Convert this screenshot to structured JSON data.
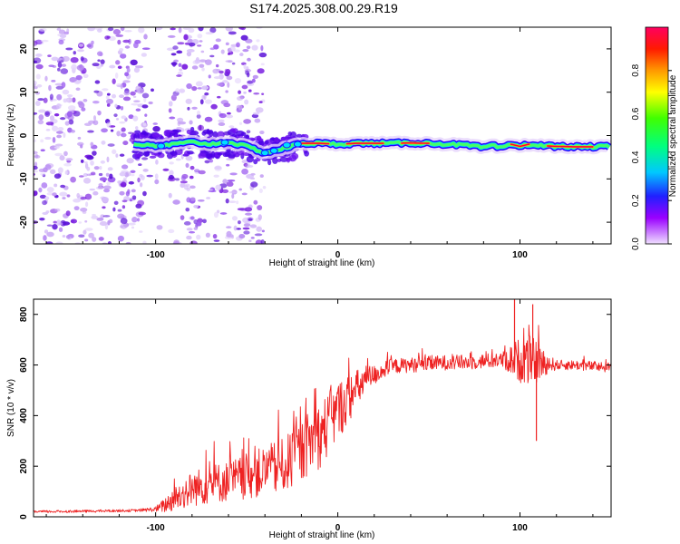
{
  "title": "S174.2025.308.00.29.R19",
  "colors": {
    "snr_line": "#ee2222",
    "ridge_outer": "#2b00ff",
    "ridge_mid": "#00ddff",
    "ridge_core": "#ff0033",
    "scatter": "#7b1ce8"
  },
  "chart_data": [
    {
      "type": "heatmap",
      "name": "spectrogram",
      "xlabel": "Height of straight line (km)",
      "ylabel": "Frequency (Hz)",
      "xlim": [
        -167,
        150
      ],
      "ylim": [
        -25,
        25
      ],
      "xticks": [
        -100,
        0,
        100
      ],
      "yticks": [
        -20,
        -10,
        0,
        10,
        20
      ],
      "ridge_x": [
        -110,
        -100,
        -90,
        -80,
        -70,
        -60,
        -50,
        -40,
        -30,
        -20,
        -10,
        0,
        10,
        20,
        30,
        40,
        50,
        60,
        70,
        80,
        85,
        90,
        95,
        100,
        105,
        110,
        120,
        130,
        140,
        148
      ],
      "ridge_y": [
        -2,
        -2.5,
        -2,
        -1.5,
        -2,
        -1.5,
        -2.5,
        -4,
        -3,
        -1.8,
        -1.8,
        -2,
        -1.8,
        -1.8,
        -1.8,
        -1.7,
        -1.8,
        -2,
        -2.2,
        -2.8,
        -2.3,
        -3,
        -2,
        -2.5,
        -2,
        -2.3,
        -2.5,
        -2.6,
        -2.6,
        -2.5
      ],
      "scatter_span": [
        -167,
        -40
      ],
      "colorbar": {
        "label": "Normalized spectral amplitude",
        "range": [
          0.0,
          1.0
        ],
        "ticks": [
          0.0,
          0.2,
          0.4,
          0.6,
          0.8
        ]
      }
    },
    {
      "type": "line",
      "name": "snr",
      "xlabel": "Height of straight line (km)",
      "ylabel": "SNR (10 * v/v)",
      "xlim": [
        -167,
        150
      ],
      "ylim": [
        0,
        860
      ],
      "xticks": [
        -100,
        0,
        100
      ],
      "yticks": [
        0,
        200,
        400,
        600,
        800
      ],
      "x": [
        -167,
        -140,
        -110,
        -100,
        -95,
        -90,
        -80,
        -70,
        -60,
        -50,
        -40,
        -30,
        -20,
        -15,
        -10,
        -5,
        0,
        5,
        10,
        15,
        20,
        25,
        30,
        40,
        50,
        60,
        70,
        80,
        90,
        95,
        100,
        105,
        110,
        115,
        120,
        130,
        140,
        150
      ],
      "y": [
        20,
        22,
        25,
        30,
        45,
        70,
        110,
        130,
        140,
        160,
        180,
        200,
        260,
        300,
        320,
        370,
        420,
        460,
        500,
        540,
        560,
        580,
        595,
        600,
        605,
        610,
        610,
        615,
        620,
        620,
        620,
        620,
        610,
        605,
        600,
        600,
        595,
        590
      ],
      "noise": [
        5,
        5,
        5,
        10,
        30,
        50,
        70,
        80,
        80,
        90,
        100,
        110,
        120,
        130,
        130,
        130,
        120,
        100,
        80,
        60,
        40,
        35,
        30,
        30,
        30,
        30,
        30,
        30,
        30,
        60,
        90,
        100,
        80,
        40,
        20,
        20,
        20,
        20
      ],
      "annotations": [
        {
          "x": 97,
          "y": 860
        },
        {
          "x": 107,
          "y": 840
        },
        {
          "x": 109,
          "y": 300
        }
      ]
    }
  ]
}
